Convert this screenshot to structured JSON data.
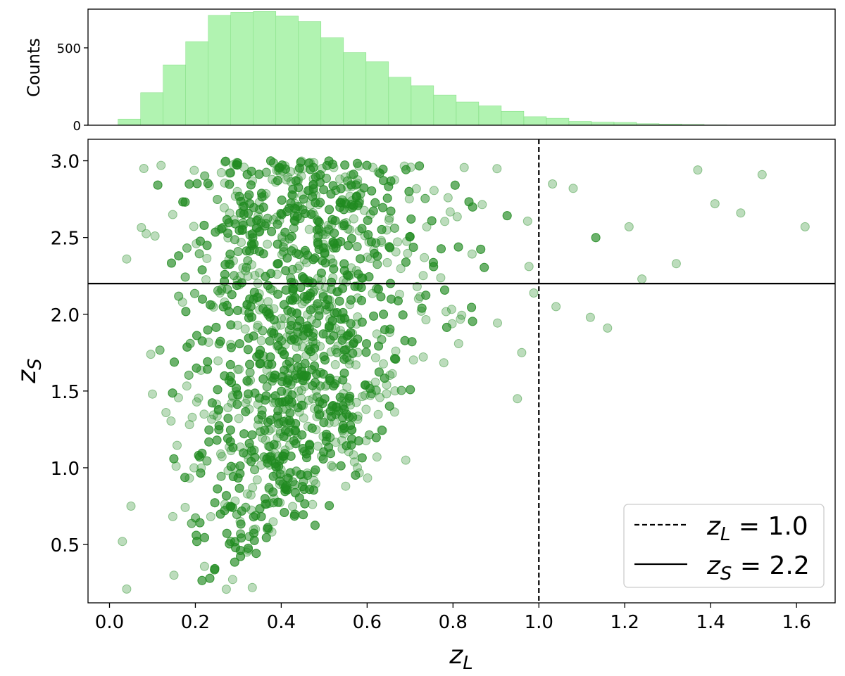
{
  "chart_data": [
    {
      "type": "bar",
      "panel": "histogram",
      "ylabel": "Counts",
      "xlim": [
        -0.05,
        1.69
      ],
      "ylim": [
        0,
        750
      ],
      "yticks": [
        0,
        500
      ],
      "bin_width": 0.0525,
      "bin_start": 0.02,
      "values": [
        40,
        210,
        390,
        540,
        710,
        730,
        735,
        705,
        670,
        565,
        470,
        410,
        310,
        255,
        195,
        150,
        125,
        90,
        55,
        45,
        25,
        20,
        18,
        10,
        8,
        5,
        2
      ],
      "color": "#90ee90",
      "grid": false
    },
    {
      "type": "scatter",
      "panel": "scatter",
      "xlabel": "z_L",
      "ylabel": "z_S",
      "xlim": [
        -0.05,
        1.69
      ],
      "ylim": [
        0.12,
        3.14
      ],
      "xticks": [
        0.0,
        0.2,
        0.4,
        0.6,
        0.8,
        1.0,
        1.2,
        1.4,
        1.6
      ],
      "xtick_labels": [
        "0.0",
        "0.2",
        "0.4",
        "0.6",
        "0.8",
        "1.0",
        "1.2",
        "1.4",
        "1.6"
      ],
      "yticks": [
        0.5,
        1.0,
        1.5,
        2.0,
        2.5,
        3.0
      ],
      "ytick_labels": [
        "0.5",
        "1.0",
        "1.5",
        "2.0",
        "2.5",
        "3.0"
      ],
      "point_color": "#228b22",
      "point_count": 10000,
      "points": [
        [
          0.03,
          0.52
        ],
        [
          0.04,
          0.21
        ],
        [
          0.04,
          2.36
        ],
        [
          0.05,
          0.75
        ],
        [
          0.08,
          2.95
        ],
        [
          0.1,
          1.48
        ],
        [
          0.12,
          2.97
        ],
        [
          0.15,
          0.3
        ],
        [
          0.55,
          0.88
        ],
        [
          0.69,
          1.05
        ],
        [
          0.95,
          1.45
        ],
        [
          0.96,
          1.75
        ],
        [
          1.04,
          2.05
        ],
        [
          1.08,
          2.82
        ],
        [
          1.12,
          1.98
        ],
        [
          1.16,
          1.91
        ],
        [
          1.21,
          2.57
        ],
        [
          1.24,
          2.23
        ],
        [
          1.32,
          2.33
        ],
        [
          1.37,
          2.94
        ],
        [
          1.41,
          2.72
        ],
        [
          1.47,
          2.66
        ],
        [
          1.52,
          2.91
        ],
        [
          1.62,
          2.57
        ]
      ],
      "vline": {
        "x": 1.0,
        "style": "dashed",
        "label": "z_L = 1.0"
      },
      "hline": {
        "y": 2.2,
        "style": "solid",
        "label": "z_S = 2.2"
      },
      "legend": {
        "placement": "lower-right",
        "entries": [
          {
            "var": "z",
            "sub": "L",
            "text": " = 1.0",
            "style": "dashed"
          },
          {
            "var": "z",
            "sub": "S",
            "text": " = 2.2",
            "style": "solid"
          }
        ]
      },
      "grid": false
    }
  ]
}
